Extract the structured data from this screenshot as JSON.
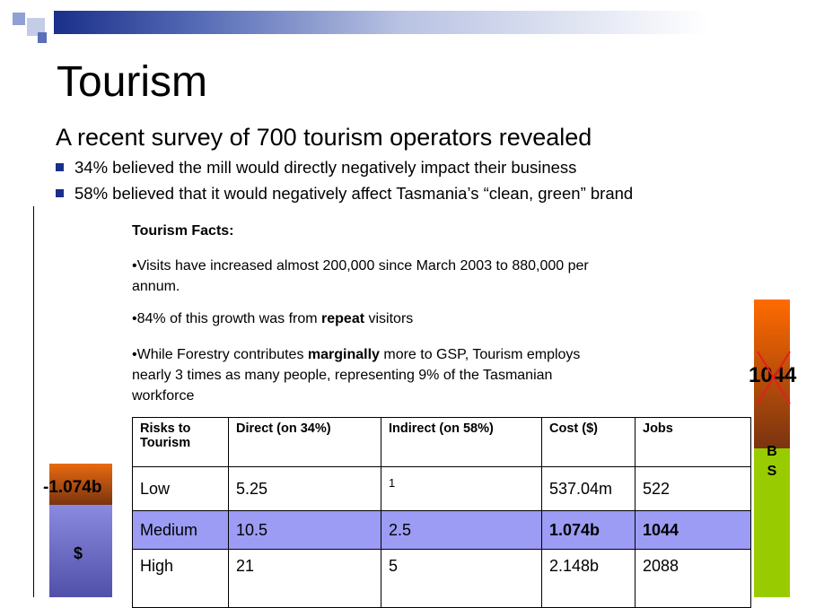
{
  "title": "Tourism",
  "subtitle": "A recent survey of 700 tourism operators revealed",
  "bullets": [
    "34% believed the mill would directly negatively impact their business",
    "58% believed that it would negatively affect Tasmania’s “clean, green” brand"
  ],
  "facts": {
    "heading": "Tourism Facts:",
    "items": [
      [
        "•Visits have increased almost 200,000 since March 2003 to 880,000 per annum."
      ],
      [
        "•84% of this growth was from ",
        "repeat",
        " visitors"
      ],
      [
        "•While Forestry contributes ",
        "marginally",
        " more to GSP, Tourism employs nearly 3 times as many people, representing 9% of the Tasmanian workforce"
      ]
    ]
  },
  "table": {
    "header": [
      "Risks to Tourism",
      "Direct  (on 34%)",
      "Indirect (on 58%)",
      "Cost ($)",
      "Jobs"
    ],
    "rows": [
      [
        "Low",
        "5.25",
        "1",
        "537.04m",
        "522"
      ],
      [
        "Medium",
        "10.5",
        "2.5",
        "1.074b",
        "1044"
      ],
      [
        "High",
        "21",
        "5",
        "2.148b",
        "2088"
      ]
    ]
  },
  "left_bar": {
    "label": "-1.074b",
    "symbol": "$"
  },
  "right_bar": {
    "label": "1044",
    "letters": [
      "B",
      "S"
    ]
  }
}
